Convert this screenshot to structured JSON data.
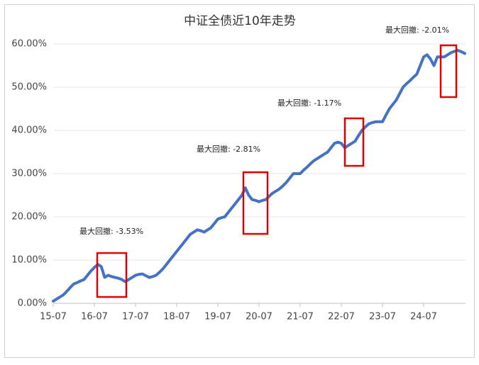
{
  "chart_data": {
    "type": "line",
    "title": "中证全债近10年走势",
    "categories": [
      "15-07",
      null,
      null,
      null,
      null,
      null,
      null,
      null,
      null,
      null,
      null,
      null,
      "16-07",
      null,
      null,
      null,
      null,
      null,
      null,
      null,
      null,
      null,
      null,
      null,
      "17-07",
      null,
      null,
      null,
      null,
      null,
      null,
      null,
      null,
      null,
      null,
      null,
      "18-07",
      null,
      null,
      null,
      null,
      null,
      null,
      null,
      null,
      null,
      null,
      null,
      "19-07",
      null,
      null,
      null,
      null,
      null,
      null,
      null,
      null,
      null,
      null,
      null,
      "20-07",
      null,
      null,
      null,
      null,
      null,
      null,
      null,
      null,
      null,
      null,
      null,
      "21-07",
      null,
      null,
      null,
      null,
      null,
      null,
      null,
      null,
      null,
      null,
      null,
      "22-07",
      null,
      null,
      null,
      null,
      null,
      null,
      null,
      null,
      null,
      null,
      null,
      "23-07",
      null,
      null,
      null,
      null,
      null,
      null,
      null,
      null,
      null,
      null,
      null,
      "24-07",
      null,
      null,
      null,
      null,
      null,
      null,
      null,
      null,
      null,
      null,
      null,
      null
    ],
    "series": [
      {
        "color": "#4472c4",
        "values": [
          0.5,
          1.0,
          1.5,
          2.0,
          2.8,
          3.7,
          4.5,
          4.8,
          5.2,
          5.5,
          6.5,
          7.5,
          8.3,
          9.0,
          8.5,
          6.0,
          6.5,
          6.2,
          6.0,
          5.8,
          5.5,
          5.0,
          5.5,
          6.0,
          6.5,
          6.7,
          6.8,
          6.4,
          6.0,
          6.2,
          6.5,
          7.2,
          8.0,
          9.0,
          10.0,
          11.0,
          12.0,
          13.0,
          14.0,
          15.0,
          16.0,
          16.5,
          17.0,
          16.8,
          16.5,
          17.0,
          17.5,
          18.5,
          19.5,
          19.8,
          20.0,
          21.0,
          22.0,
          23.0,
          24.0,
          25.0,
          26.7,
          25.0,
          24.0,
          23.8,
          23.5,
          23.8,
          24.0,
          24.8,
          25.5,
          26.0,
          26.5,
          27.2,
          28.0,
          29.0,
          30.0,
          30.0,
          30.0,
          30.8,
          31.5,
          32.3,
          33.0,
          33.5,
          34.0,
          34.5,
          35.0,
          36.0,
          37.0,
          37.3,
          37.0,
          36.0,
          36.5,
          37.0,
          37.5,
          38.8,
          40.0,
          40.8,
          41.5,
          41.8,
          42.0,
          42.0,
          42.0,
          43.5,
          45.0,
          46.0,
          47.0,
          48.5,
          50.0,
          50.8,
          51.5,
          52.3,
          53.0,
          55.0,
          57.0,
          57.5,
          56.5,
          55.0,
          57.0,
          57.0,
          57.0,
          57.5,
          58.0,
          58.3,
          58.5,
          58.2,
          57.8
        ]
      }
    ],
    "ylim": [
      0,
      62
    ],
    "yticks": [
      {
        "value": 0,
        "label": "0.00%"
      },
      {
        "value": 10,
        "label": "10.00%"
      },
      {
        "value": 20,
        "label": "20.00%"
      },
      {
        "value": 30,
        "label": "30.00%"
      },
      {
        "value": 40,
        "label": "40.00%"
      },
      {
        "value": 50,
        "label": "50.00%"
      },
      {
        "value": 60,
        "label": "60.00%"
      }
    ],
    "grid": true,
    "annotations": [
      "最大回撤: -3.53%",
      "最大回撤: -2.81%",
      "最大回撤: -1.17%",
      "最大回撤: -2.01%"
    ]
  }
}
